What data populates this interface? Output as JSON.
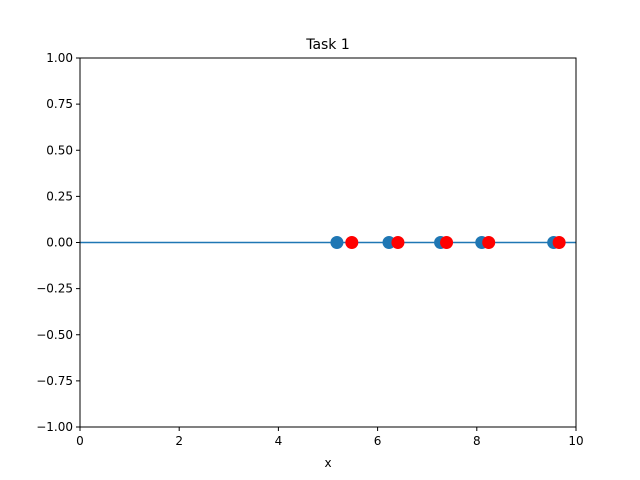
{
  "chart_data": {
    "type": "scatter",
    "title": "Task 1",
    "xlabel": "x",
    "ylabel": "",
    "xlim": [
      0,
      10
    ],
    "ylim": [
      -1.0,
      1.0
    ],
    "x_ticks": [
      0,
      2,
      4,
      6,
      8,
      10
    ],
    "y_ticks": [
      1.0,
      0.75,
      0.5,
      0.25,
      0.0,
      -0.25,
      -0.5,
      -0.75,
      -1.0
    ],
    "x_tick_labels": [
      "0",
      "2",
      "4",
      "6",
      "8",
      "10"
    ],
    "y_tick_labels": [
      "1.00",
      "0.75",
      "0.50",
      "0.25",
      "0.00",
      "−0.25",
      "−0.50",
      "−0.75",
      "−1.00"
    ],
    "grid": false,
    "baseline": {
      "y": 0.0,
      "color": "#1f77b4"
    },
    "series": [
      {
        "color": "#1f77b4",
        "points": [
          [
            5.18,
            0.0
          ],
          [
            6.23,
            0.0
          ],
          [
            7.27,
            0.0
          ],
          [
            8.1,
            0.0
          ],
          [
            9.55,
            0.0
          ]
        ]
      },
      {
        "color": "#ff0000",
        "points": [
          [
            5.48,
            0.0
          ],
          [
            6.41,
            0.0
          ],
          [
            7.39,
            0.0
          ],
          [
            8.24,
            0.0
          ],
          [
            9.66,
            0.0
          ]
        ]
      }
    ]
  }
}
